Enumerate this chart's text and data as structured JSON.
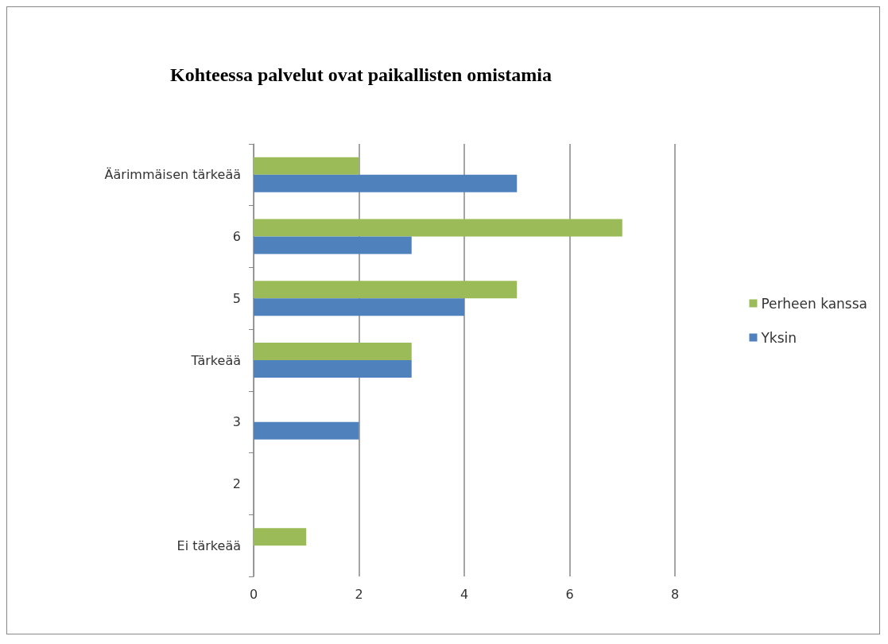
{
  "chart_data": {
    "type": "bar",
    "orientation": "horizontal",
    "title": "Kohteessa palvelut ovat paikallisten omistamia",
    "categories": [
      "Äärimmäisen tärkeää",
      "6",
      "5",
      "Tärkeää",
      "3",
      "2",
      "Ei tärkeää"
    ],
    "series": [
      {
        "name": "Perheen kanssa",
        "color": "#9bbb59",
        "values": [
          2,
          7,
          5,
          3,
          0,
          0,
          1
        ]
      },
      {
        "name": "Yksin",
        "color": "#4f81bd",
        "values": [
          5,
          3,
          4,
          3,
          2,
          0,
          0
        ]
      }
    ],
    "xlim": [
      0,
      8
    ],
    "xticks": [
      0,
      2,
      4,
      6,
      8
    ],
    "grid": "x",
    "legend": "right"
  }
}
